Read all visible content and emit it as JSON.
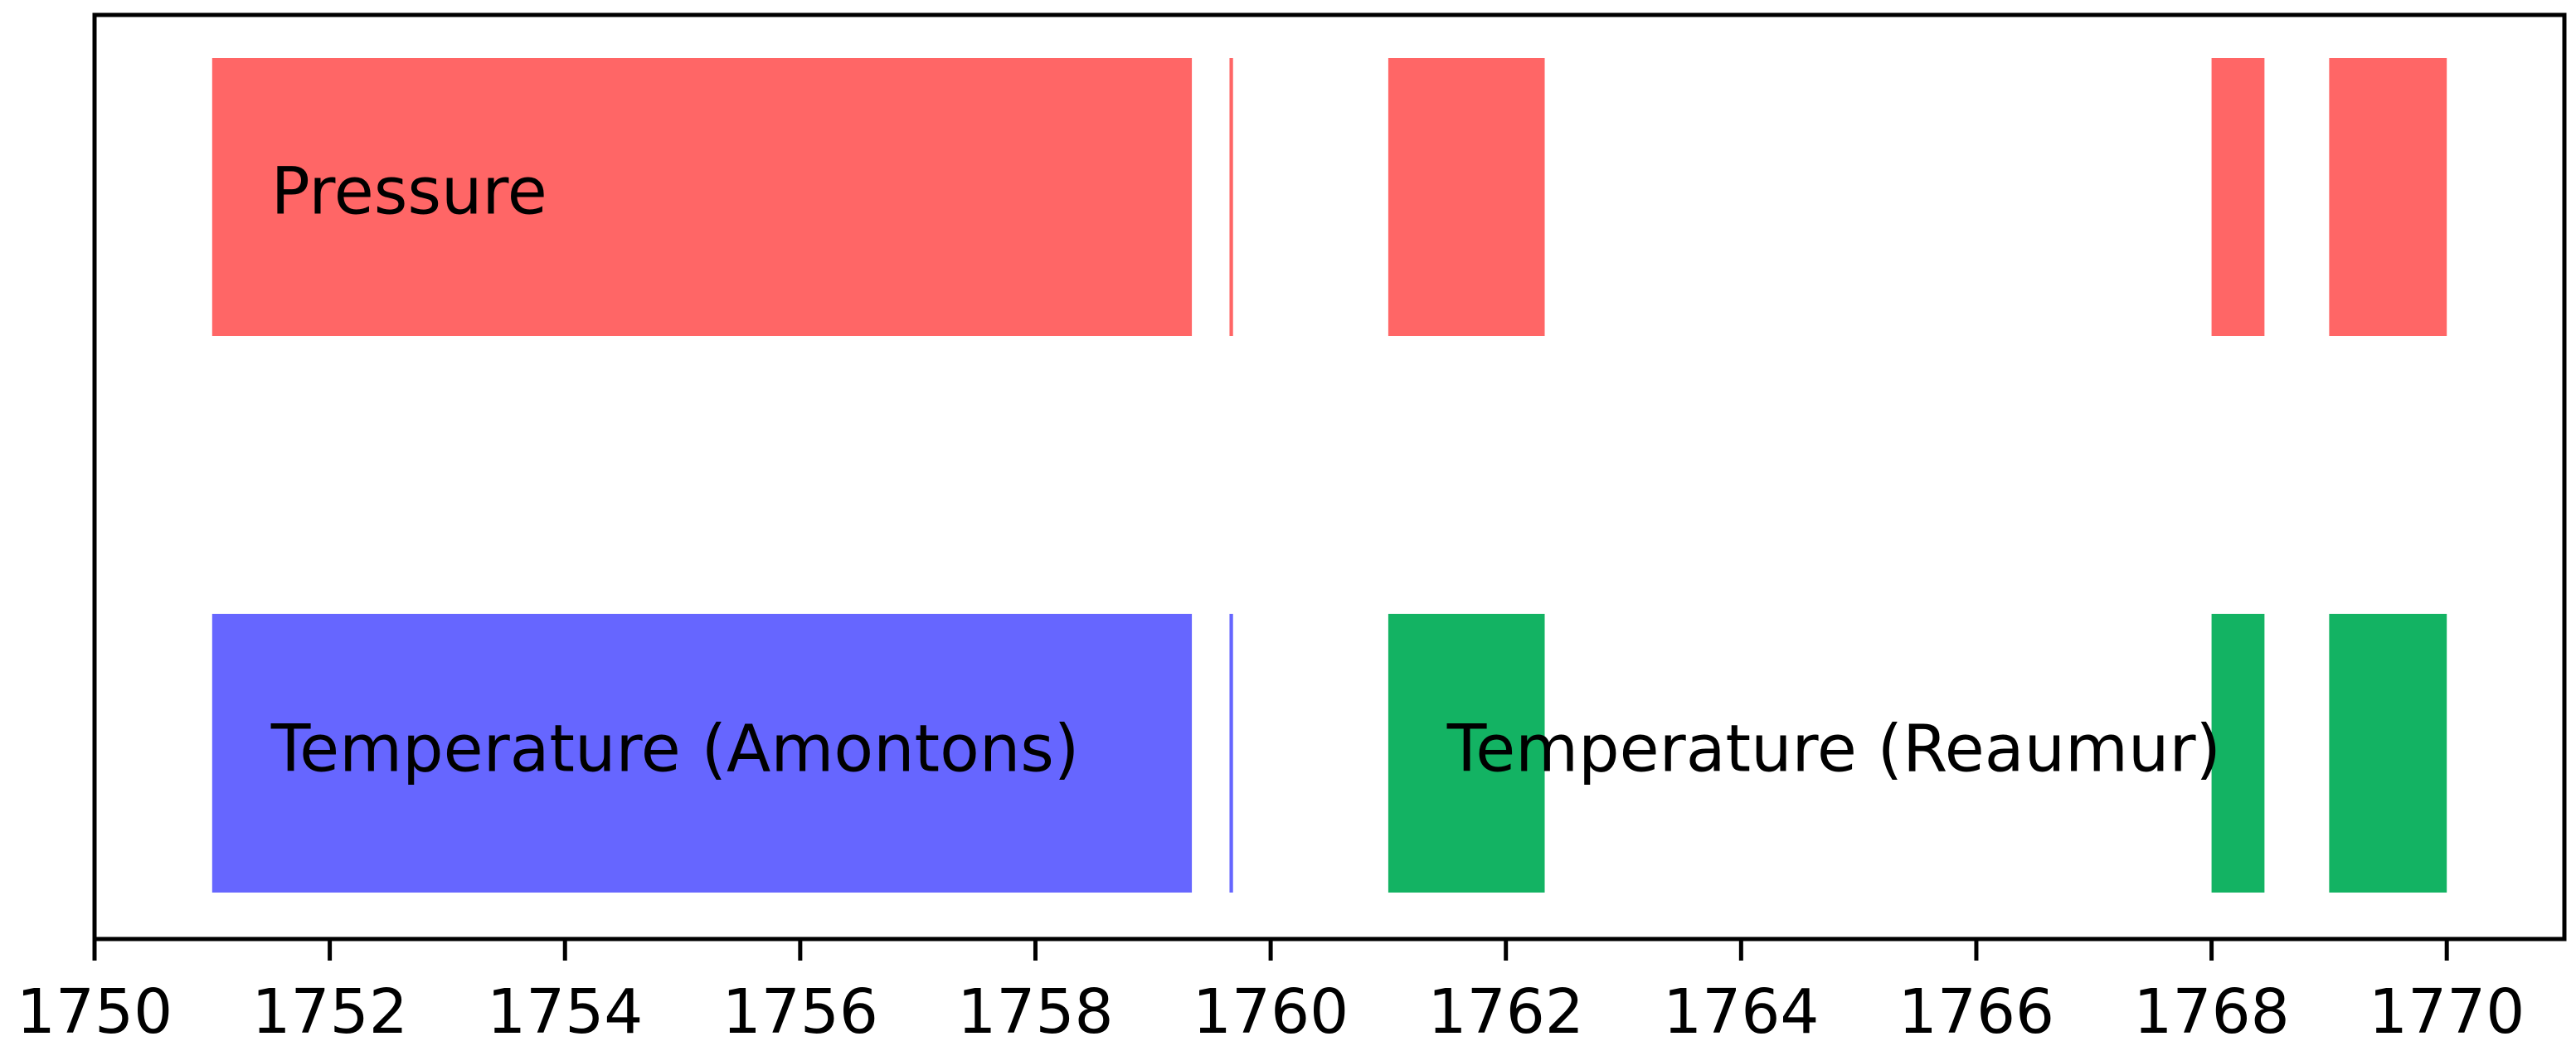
{
  "chart_data": {
    "type": "timeline",
    "xlim": [
      1750,
      1771
    ],
    "x_ticks": [
      1750,
      1752,
      1754,
      1756,
      1758,
      1760,
      1762,
      1764,
      1766,
      1768,
      1770
    ],
    "grid": false,
    "legend": "none",
    "rows": [
      {
        "id": "pressure",
        "segments": [
          {
            "start": 1751.0,
            "end": 1759.33,
            "color": "#FF6666"
          },
          {
            "start": 1759.65,
            "end": 1759.68,
            "color": "#FF6666"
          },
          {
            "start": 1761.0,
            "end": 1762.33,
            "color": "#FF6666"
          },
          {
            "start": 1768.0,
            "end": 1768.45,
            "color": "#FF6666"
          },
          {
            "start": 1769.0,
            "end": 1770.0,
            "color": "#FF6666"
          }
        ],
        "labels": [
          {
            "text": "Pressure",
            "x": 1751.5
          }
        ]
      },
      {
        "id": "temperature",
        "segments": [
          {
            "start": 1751.0,
            "end": 1759.33,
            "color": "#6666FF"
          },
          {
            "start": 1759.65,
            "end": 1759.68,
            "color": "#6666FF"
          },
          {
            "start": 1761.0,
            "end": 1762.33,
            "color": "#13B363"
          },
          {
            "start": 1768.0,
            "end": 1768.45,
            "color": "#13B363"
          },
          {
            "start": 1769.0,
            "end": 1770.0,
            "color": "#13B363"
          }
        ],
        "labels": [
          {
            "text": "Temperature (Amontons)",
            "x": 1751.5
          },
          {
            "text": "Temperature (Reaumur)",
            "x": 1761.5
          }
        ]
      }
    ]
  }
}
